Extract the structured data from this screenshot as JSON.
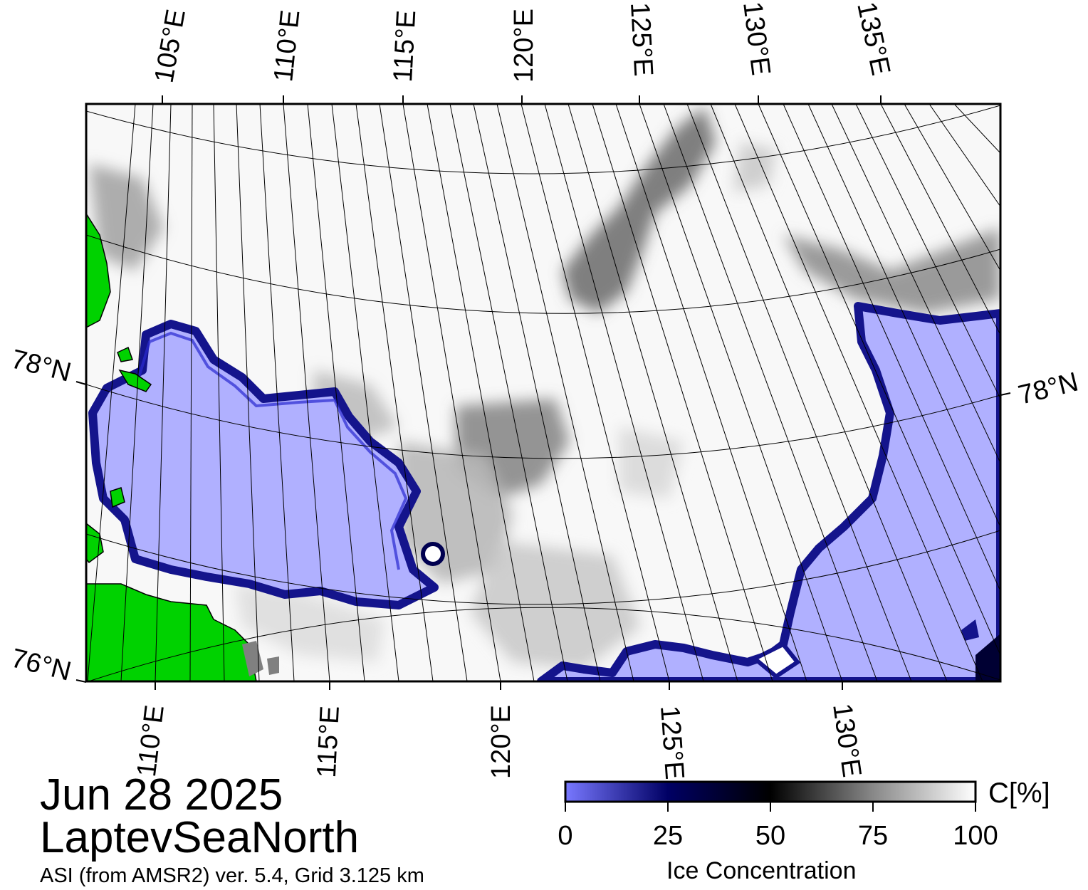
{
  "map": {
    "top_lon_labels": [
      "105°E",
      "110°E",
      "115°E",
      "120°E",
      "125°E",
      "130°E",
      "135°E"
    ],
    "bottom_lon_labels": [
      "110°E",
      "115°E",
      "120°E",
      "125°E",
      "130°E"
    ],
    "left_lat_labels": [
      "78°N",
      "76°N"
    ],
    "right_lat_labels": [
      "78°N"
    ]
  },
  "info": {
    "date": "Jun 28 2025",
    "region": "LaptevSeaNorth",
    "source": "ASI (from AMSR2) ver. 5.4,  Grid 3.125 km"
  },
  "colorbar": {
    "title": "Ice Concentration",
    "unit": "C[%]",
    "ticks": [
      "0",
      "25",
      "50",
      "75",
      "100"
    ],
    "range": [
      0,
      100
    ],
    "stops": [
      {
        "value": 0,
        "color": "#7878ff"
      },
      {
        "value": 25,
        "color": "#000064"
      },
      {
        "value": 50,
        "color": "#000000"
      },
      {
        "value": 75,
        "color": "#888888"
      },
      {
        "value": 100,
        "color": "#ffffff"
      }
    ]
  },
  "colors": {
    "open_water": "#b0b0ff",
    "ice_edge": "#1c1c9a",
    "land": "#00d200",
    "coast_mask": "#808080",
    "ice_pack": "#f4f4f4"
  }
}
